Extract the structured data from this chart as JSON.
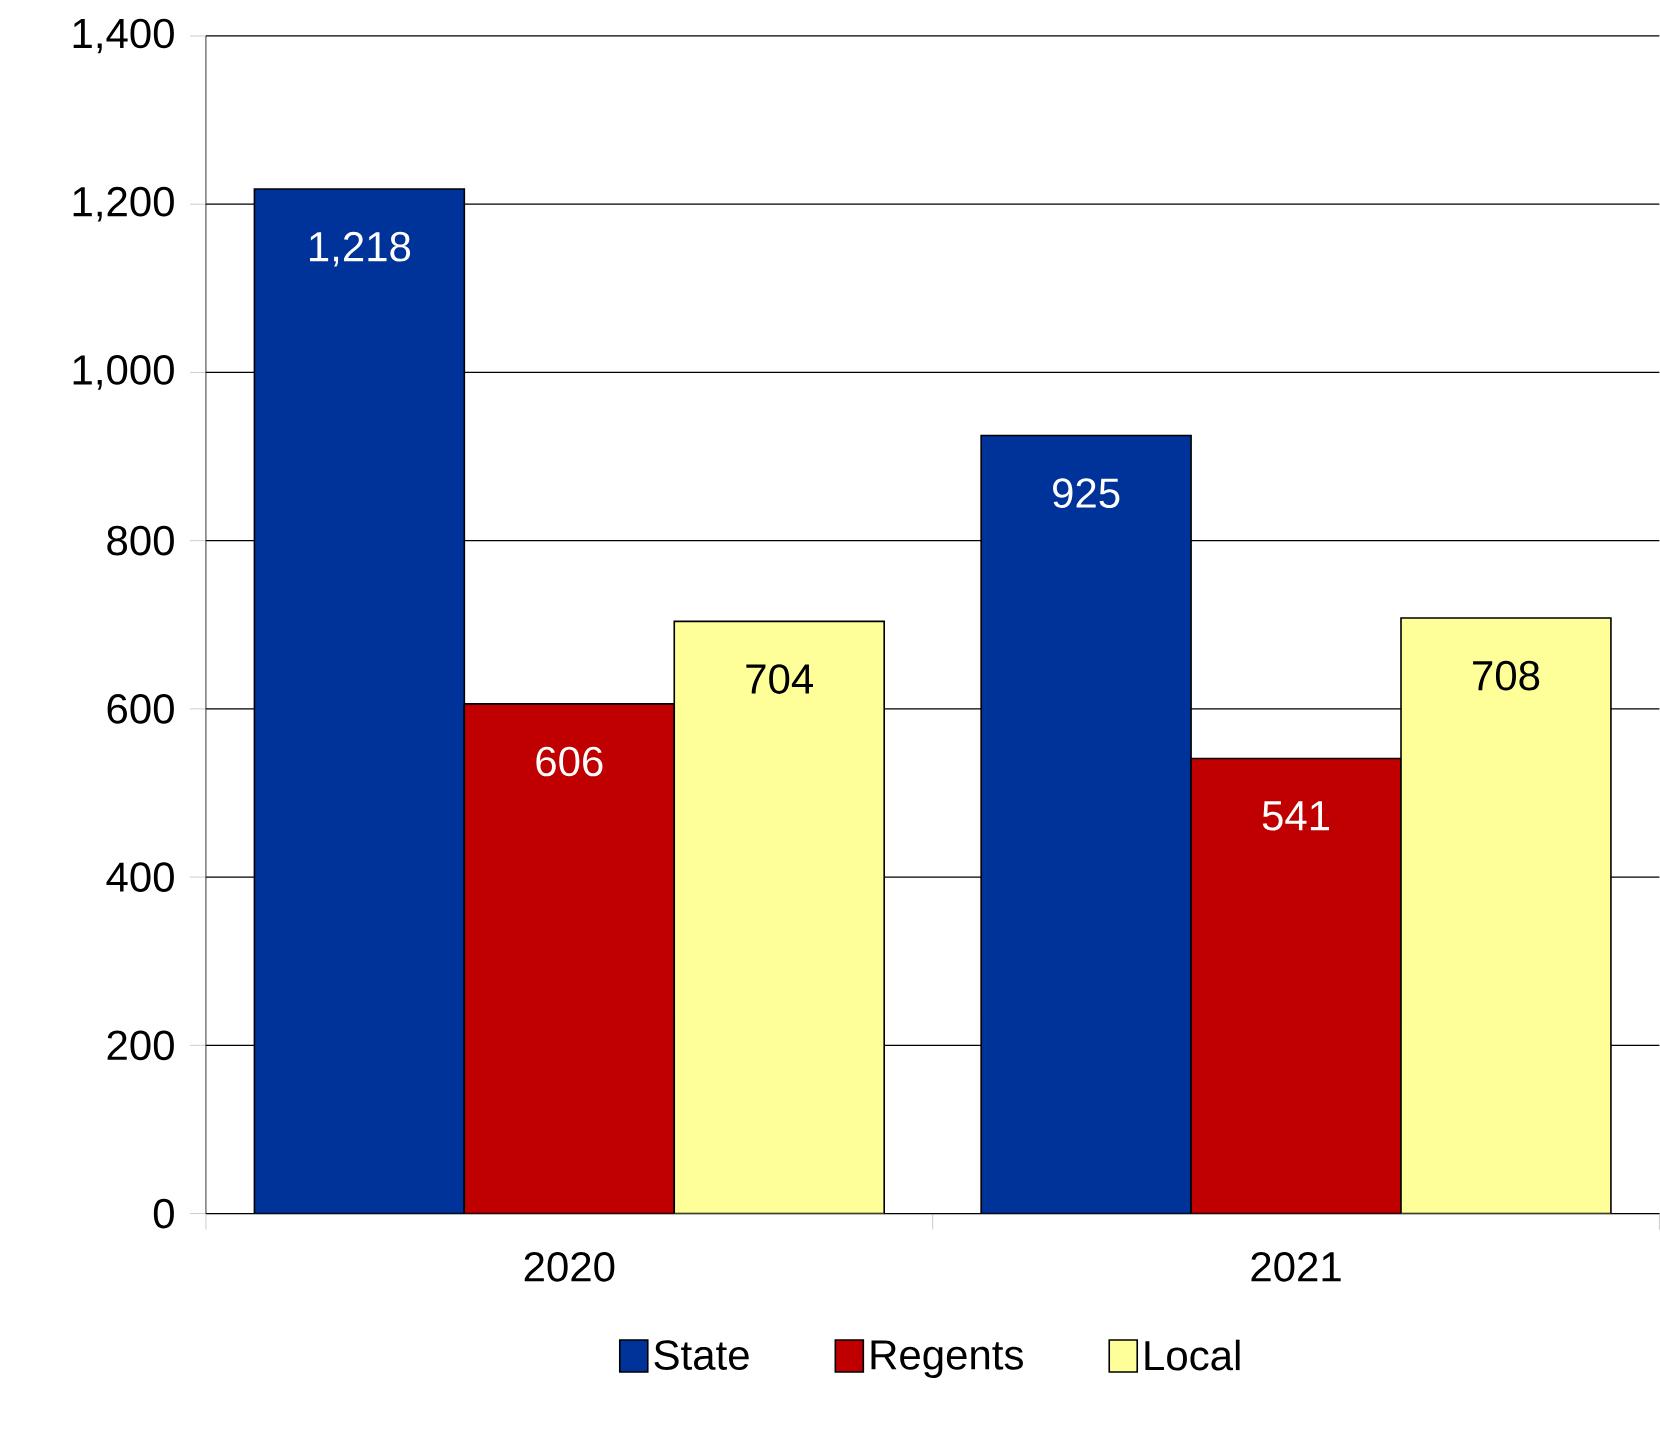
{
  "chart_data": {
    "type": "bar",
    "categories": [
      "2020",
      "2021"
    ],
    "series": [
      {
        "name": "State",
        "color": "#003399",
        "values": [
          1218,
          925
        ],
        "value_labels": [
          "1,218",
          "925"
        ]
      },
      {
        "name": "Regents",
        "color": "#c00000",
        "values": [
          606,
          541
        ],
        "value_labels": [
          "606",
          "541"
        ]
      },
      {
        "name": "Local",
        "color": "#ffff99",
        "values": [
          704,
          708
        ],
        "value_labels": [
          "704",
          "708"
        ]
      }
    ],
    "ylim": [
      0,
      1400
    ],
    "yticks": [
      0,
      200,
      400,
      600,
      800,
      {
        "value": 1000,
        "label": "1,000"
      },
      {
        "value": 1200,
        "label": "1,200"
      },
      {
        "value": 1400,
        "label": "1,400"
      }
    ],
    "grid": "y",
    "legend": "bottom"
  }
}
